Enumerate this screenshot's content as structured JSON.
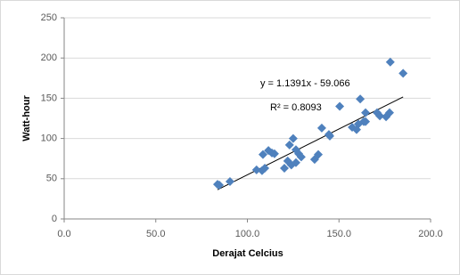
{
  "chart_data": {
    "type": "scatter",
    "x_label": "Derajat Celcius",
    "y_label": "Watt-hour",
    "xlim": [
      0,
      200
    ],
    "ylim": [
      0,
      250
    ],
    "xticks": [
      {
        "value": 0,
        "label": "0.0"
      },
      {
        "value": 50,
        "label": "50.0"
      },
      {
        "value": 100,
        "label": "100.0"
      },
      {
        "value": 150,
        "label": "150.0"
      },
      {
        "value": 200,
        "label": "200.0"
      }
    ],
    "yticks": [
      0,
      50,
      100,
      150,
      200,
      250
    ],
    "grid": true,
    "color": "#4f81bd",
    "x": [
      84.7,
      83.7,
      90.5,
      105,
      108,
      109.5,
      108.5,
      111.5,
      113.4,
      114.8,
      120.2,
      122,
      123,
      125,
      124,
      126.5,
      126.5,
      128,
      129.4,
      136.7,
      138.7,
      140.6,
      145,
      144.5,
      150.4,
      157.2,
      159.6,
      160.6,
      161.6,
      163.5,
      164.5,
      164.5,
      170.8,
      172.3,
      175.7,
      177.6,
      178,
      185
    ],
    "values": [
      42,
      43,
      46.5,
      61,
      60,
      63,
      80,
      85,
      82,
      81,
      63,
      72,
      92,
      100,
      67,
      70,
      86,
      81,
      77,
      74,
      80,
      113,
      103,
      105,
      140,
      114,
      111,
      118,
      149,
      121,
      132,
      121,
      132,
      128,
      127,
      132,
      195,
      181
    ],
    "trendline": {
      "equation": "y = 1.1391x - 59.066",
      "r_squared": "R² = 0.8093",
      "slope": 1.1391,
      "intercept": -59.066
    }
  }
}
